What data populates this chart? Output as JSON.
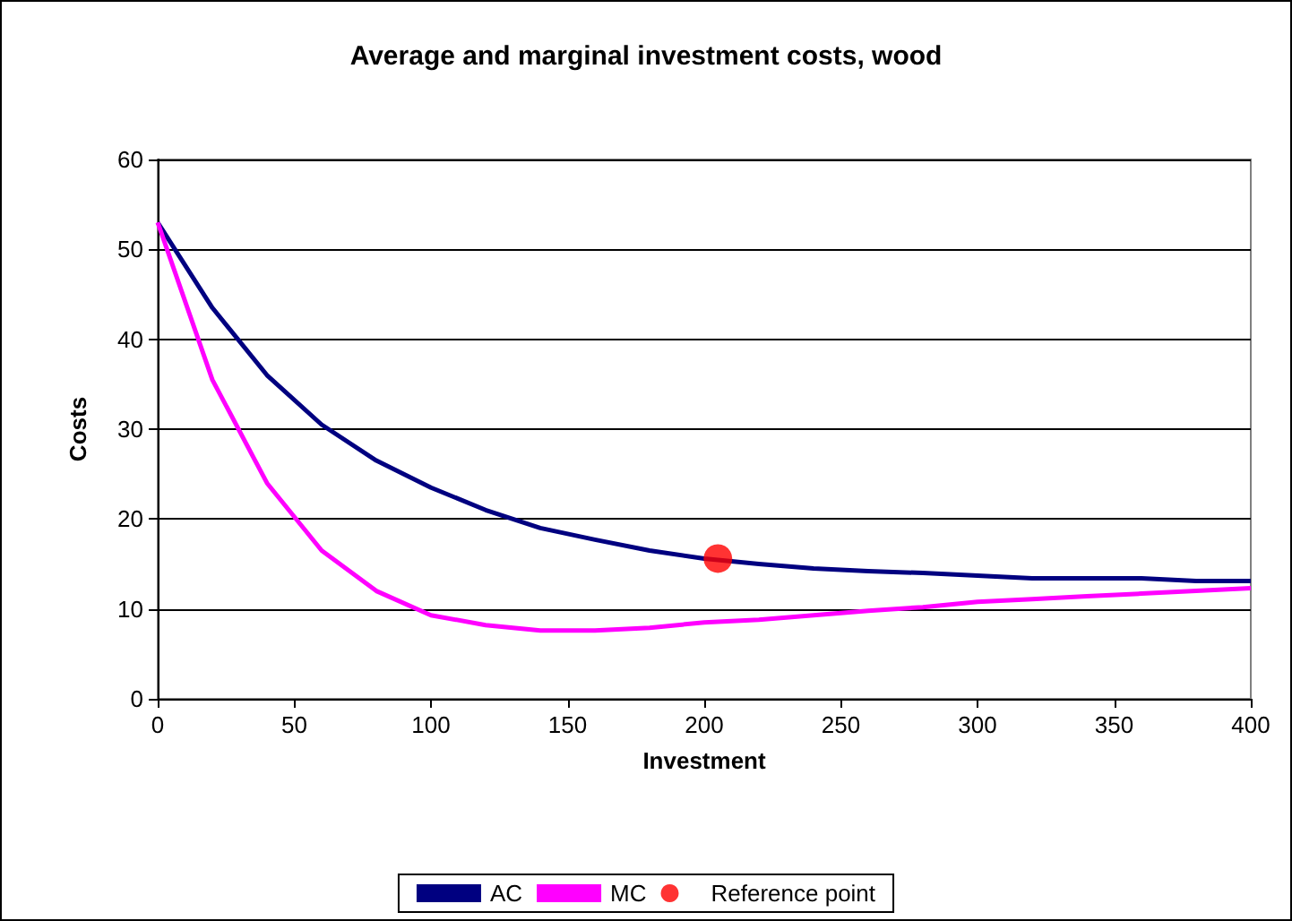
{
  "chart_data": {
    "type": "line",
    "title": "Average and marginal investment costs, wood",
    "xlabel": "Investment",
    "ylabel": "Costs",
    "x": [
      0,
      20,
      40,
      60,
      80,
      100,
      120,
      140,
      160,
      180,
      200,
      220,
      240,
      260,
      280,
      300,
      320,
      340,
      360,
      380,
      400
    ],
    "series": [
      {
        "name": "AC",
        "color": "#000080",
        "values": [
          53,
          43.5,
          36,
          30.5,
          26.5,
          23.5,
          21,
          19,
          17.7,
          16.5,
          15.6,
          15,
          14.5,
          14.2,
          14,
          13.7,
          13.4,
          13.4,
          13.4,
          13.1,
          13.1
        ]
      },
      {
        "name": "MC",
        "color": "#ff00ff",
        "values": [
          53,
          35.5,
          24,
          16.5,
          12,
          9.3,
          8.2,
          7.6,
          7.6,
          7.9,
          8.5,
          8.8,
          9.3,
          9.8,
          10.2,
          10.8,
          11.1,
          11.4,
          11.7,
          12,
          12.3
        ]
      },
      {
        "name": "Reference point",
        "type": "scatter",
        "color": "#ff0000",
        "x": [
          205
        ],
        "values": [
          15.6
        ],
        "marker": "circle"
      }
    ],
    "xlim": [
      0,
      400
    ],
    "xticks": [
      0,
      50,
      100,
      150,
      200,
      250,
      300,
      350,
      400
    ],
    "ylim": [
      0,
      60
    ],
    "yticks": [
      0,
      10,
      20,
      30,
      40,
      50,
      60
    ],
    "grid": "y",
    "legend": "bottom",
    "marker": "none",
    "line_style": "solid"
  }
}
